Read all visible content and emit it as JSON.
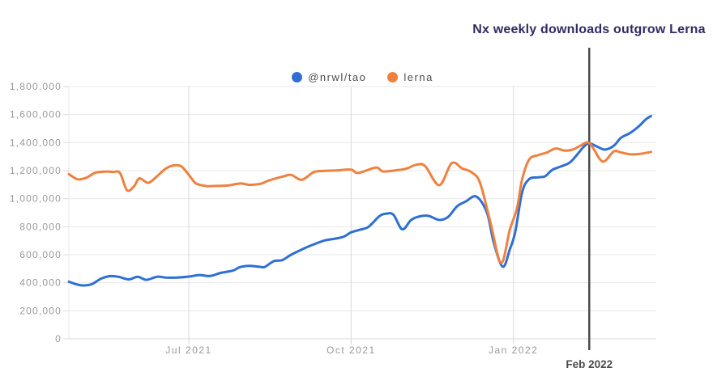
{
  "title": "Nx weekly downloads outgrow Lerna",
  "legend": [
    {
      "name": "@nrwl/tao",
      "color": "#2f6fd4"
    },
    {
      "name": "lerna",
      "color": "#ef813f"
    }
  ],
  "colors": {
    "title": "#302b63",
    "tick_label": "#999999",
    "grid": "#e8e8e8",
    "axis": "#d9d9d9",
    "annotation_line": "#4b4b4b",
    "annotation_label": "#4a4a4a",
    "series_blue": "#2f6fd4",
    "series_orange": "#ef813f"
  },
  "chart_data": {
    "type": "line",
    "title": "Nx weekly downloads outgrow Lerna",
    "x_unit": "days since late Apr 2021 (weekly npm downloads)",
    "xlim": [
      0,
      333
    ],
    "ylim": [
      0,
      1800000
    ],
    "grid": true,
    "legend_position": "top-center",
    "x_ticks": [
      {
        "day": 68,
        "label": "Jul 2021"
      },
      {
        "day": 160,
        "label": "Oct 2021"
      },
      {
        "day": 252,
        "label": "Jan 2022"
      }
    ],
    "y_ticks": [
      {
        "value": 0,
        "label": "0"
      },
      {
        "value": 200000,
        "label": "200,000"
      },
      {
        "value": 400000,
        "label": "400,000"
      },
      {
        "value": 600000,
        "label": "600,000"
      },
      {
        "value": 800000,
        "label": "800,000"
      },
      {
        "value": 1000000,
        "label": "1,000,000"
      },
      {
        "value": 1200000,
        "label": "1,200,000"
      },
      {
        "value": 1400000,
        "label": "1,400,000"
      },
      {
        "value": 1600000,
        "label": "1,600,000"
      },
      {
        "value": 1800000,
        "label": "1,800,000"
      }
    ],
    "annotation": {
      "day": 295,
      "label": "Feb 2022",
      "crossing_value": 1395000
    },
    "series": [
      {
        "name": "@nrwl/tao",
        "color": "#2f6fd4",
        "points": [
          [
            0,
            408000
          ],
          [
            4,
            390000
          ],
          [
            8,
            381000
          ],
          [
            13,
            390000
          ],
          [
            18,
            428000
          ],
          [
            23,
            447000
          ],
          [
            28,
            443000
          ],
          [
            34,
            424000
          ],
          [
            39,
            443000
          ],
          [
            44,
            421000
          ],
          [
            50,
            443000
          ],
          [
            55,
            437000
          ],
          [
            61,
            437000
          ],
          [
            68,
            444000
          ],
          [
            74,
            455000
          ],
          [
            80,
            448000
          ],
          [
            86,
            470000
          ],
          [
            93,
            487000
          ],
          [
            97,
            512000
          ],
          [
            102,
            521000
          ],
          [
            108,
            514000
          ],
          [
            111,
            513000
          ],
          [
            116,
            553000
          ],
          [
            121,
            562000
          ],
          [
            126,
            600000
          ],
          [
            132,
            637000
          ],
          [
            138,
            670000
          ],
          [
            145,
            702000
          ],
          [
            151,
            715000
          ],
          [
            156,
            730000
          ],
          [
            160,
            760000
          ],
          [
            165,
            778000
          ],
          [
            170,
            800000
          ],
          [
            176,
            875000
          ],
          [
            180,
            893000
          ],
          [
            184,
            885000
          ],
          [
            189,
            781000
          ],
          [
            194,
            848000
          ],
          [
            199,
            874000
          ],
          [
            204,
            877000
          ],
          [
            210,
            848000
          ],
          [
            215,
            870000
          ],
          [
            220,
            945000
          ],
          [
            225,
            980000
          ],
          [
            231,
            1015000
          ],
          [
            237,
            900000
          ],
          [
            241,
            680000
          ],
          [
            246,
            514000
          ],
          [
            250,
            640000
          ],
          [
            253,
            760000
          ],
          [
            257,
            1047000
          ],
          [
            261,
            1140000
          ],
          [
            266,
            1152000
          ],
          [
            270,
            1160000
          ],
          [
            274,
            1205000
          ],
          [
            279,
            1230000
          ],
          [
            284,
            1258000
          ],
          [
            288,
            1312000
          ],
          [
            292,
            1372000
          ],
          [
            295,
            1395000
          ],
          [
            300,
            1368000
          ],
          [
            304,
            1350000
          ],
          [
            309,
            1378000
          ],
          [
            313,
            1435000
          ],
          [
            318,
            1467000
          ],
          [
            323,
            1515000
          ],
          [
            327,
            1565000
          ],
          [
            330,
            1590000
          ]
        ]
      },
      {
        "name": "lerna",
        "color": "#ef813f",
        "points": [
          [
            0,
            1175000
          ],
          [
            5,
            1138000
          ],
          [
            10,
            1150000
          ],
          [
            15,
            1185000
          ],
          [
            21,
            1193000
          ],
          [
            25,
            1190000
          ],
          [
            29,
            1183000
          ],
          [
            33,
            1060000
          ],
          [
            37,
            1090000
          ],
          [
            40,
            1145000
          ],
          [
            45,
            1113000
          ],
          [
            50,
            1160000
          ],
          [
            55,
            1215000
          ],
          [
            60,
            1238000
          ],
          [
            64,
            1228000
          ],
          [
            68,
            1170000
          ],
          [
            71,
            1120000
          ],
          [
            73,
            1103000
          ],
          [
            78,
            1090000
          ],
          [
            84,
            1091000
          ],
          [
            90,
            1094000
          ],
          [
            95,
            1105000
          ],
          [
            98,
            1108000
          ],
          [
            102,
            1099000
          ],
          [
            105,
            1100000
          ],
          [
            109,
            1107000
          ],
          [
            113,
            1128000
          ],
          [
            118,
            1147000
          ],
          [
            122,
            1160000
          ],
          [
            126,
            1170000
          ],
          [
            132,
            1135000
          ],
          [
            139,
            1190000
          ],
          [
            145,
            1198000
          ],
          [
            152,
            1202000
          ],
          [
            160,
            1207000
          ],
          [
            164,
            1183000
          ],
          [
            174,
            1222000
          ],
          [
            178,
            1194000
          ],
          [
            185,
            1202000
          ],
          [
            191,
            1213000
          ],
          [
            197,
            1242000
          ],
          [
            202,
            1232000
          ],
          [
            210,
            1096000
          ],
          [
            217,
            1253000
          ],
          [
            223,
            1215000
          ],
          [
            228,
            1190000
          ],
          [
            233,
            1115000
          ],
          [
            239,
            830000
          ],
          [
            245,
            541000
          ],
          [
            250,
            780000
          ],
          [
            254,
            930000
          ],
          [
            257,
            1140000
          ],
          [
            261,
            1280000
          ],
          [
            266,
            1310000
          ],
          [
            271,
            1330000
          ],
          [
            276,
            1358000
          ],
          [
            281,
            1343000
          ],
          [
            286,
            1352000
          ],
          [
            290,
            1378000
          ],
          [
            295,
            1397000
          ],
          [
            301,
            1282000
          ],
          [
            304,
            1270000
          ],
          [
            309,
            1338000
          ],
          [
            313,
            1330000
          ],
          [
            318,
            1317000
          ],
          [
            324,
            1320000
          ],
          [
            330,
            1333000
          ]
        ]
      }
    ]
  }
}
